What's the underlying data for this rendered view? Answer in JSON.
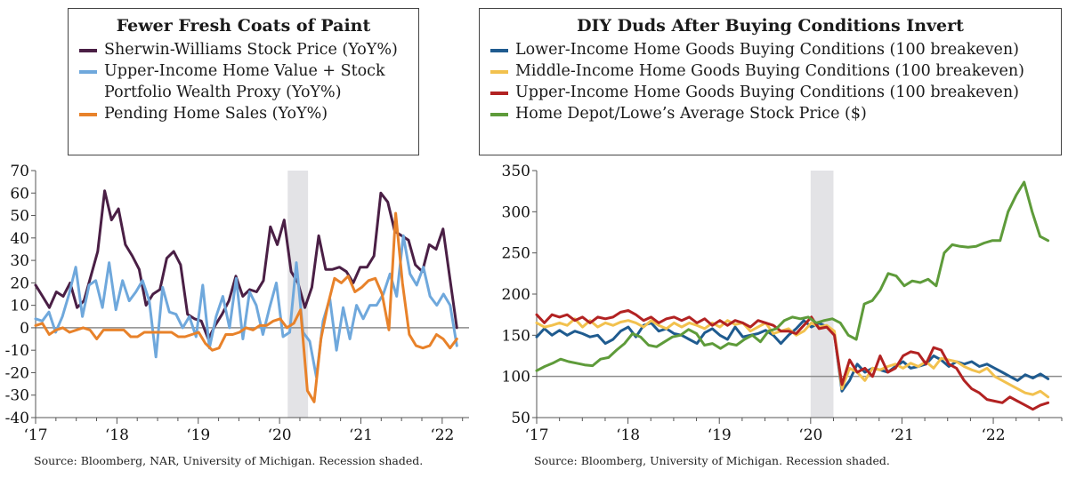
{
  "chart_data": [
    {
      "type": "line",
      "title": "Fewer Fresh Coats of Paint",
      "legend_placement": "top",
      "grid": false,
      "ylim": [
        -40,
        70
      ],
      "y_ticks": [
        "70",
        "60",
        "50",
        "40",
        "30",
        "20",
        "10",
        "0",
        "-10",
        "-20",
        "-30",
        "-40"
      ],
      "x_tick_labels": [
        "‘17",
        "‘18",
        "‘19",
        "‘20",
        "‘21",
        "‘22"
      ],
      "x_range": [
        2017.0,
        2022.33
      ],
      "recession_shade": [
        2020.1,
        2020.35
      ],
      "source": "Source: Bloomberg, NAR, University of Michigan. Recession shaded.",
      "series": [
        {
          "name": "Sherwin-Williams Stock Price (YoY%)",
          "color": "#4a1f45",
          "y": [
            19,
            14,
            9,
            16,
            14,
            20,
            9,
            12,
            23,
            34,
            61,
            48,
            53,
            37,
            32,
            26,
            10,
            15,
            17,
            31,
            34,
            28,
            6,
            4,
            3,
            -5,
            1,
            6,
            12,
            23,
            14,
            17,
            16,
            21,
            45,
            37,
            48,
            25,
            20,
            9,
            18,
            41,
            26,
            26,
            27,
            25,
            20,
            27,
            27,
            32,
            60,
            56,
            43,
            41,
            39,
            28,
            25,
            37,
            35,
            44,
            22,
            0
          ]
        },
        {
          "name": "Upper-Income Home Value + Stock Portfolio Wealth Proxy (YoY%)",
          "color": "#6fa8dc",
          "y": [
            4,
            3,
            7,
            -2,
            5,
            15,
            27,
            5,
            19,
            21,
            9,
            29,
            8,
            21,
            12,
            16,
            21,
            12,
            -13,
            18,
            7,
            6,
            0,
            5,
            -4,
            19,
            -9,
            5,
            14,
            0,
            22,
            -5,
            16,
            10,
            -3,
            9,
            20,
            -4,
            -2,
            29,
            -2,
            -6,
            -22,
            3,
            13,
            -10,
            9,
            -5,
            10,
            4,
            10,
            10,
            15,
            24,
            14,
            41,
            24,
            19,
            27,
            14,
            10,
            15,
            10,
            -8
          ]
        },
        {
          "name": "Pending Home Sales (YoY%)",
          "color": "#e8822a",
          "y": [
            1,
            2,
            -3,
            -1,
            0,
            -2,
            -1,
            0,
            -1,
            -5,
            -1,
            -1,
            -1,
            -1,
            -4,
            -4,
            -2,
            -2,
            -2,
            -2,
            -2,
            -4,
            -4,
            -3,
            -2,
            -7,
            -10,
            -9,
            -3,
            -3,
            -2,
            0,
            -1,
            1,
            1,
            3,
            4,
            0,
            2,
            8,
            -28,
            -33,
            -5,
            10,
            22,
            20,
            23,
            16,
            18,
            21,
            22,
            15,
            -1,
            51,
            20,
            -3,
            -8,
            -9,
            -8,
            -3,
            -5,
            -9,
            -5
          ]
        }
      ]
    },
    {
      "type": "line",
      "title": "DIY Duds After Buying Conditions Invert",
      "legend_placement": "top",
      "grid": false,
      "ylim": [
        50,
        350
      ],
      "reference_line": 100,
      "y_ticks": [
        "350",
        "300",
        "250",
        "200",
        "150",
        "100",
        "50"
      ],
      "x_tick_labels": [
        "‘17",
        "‘18",
        "‘19",
        "‘20",
        "‘21",
        "‘22"
      ],
      "x_range": [
        2017.0,
        2022.75
      ],
      "recession_shade": [
        2020.0,
        2020.25
      ],
      "source": "Source: Bloomberg, University of Michigan. Recession shaded.",
      "series": [
        {
          "name": "Lower-Income Home Goods Buying Conditions (100 breakeven)",
          "color": "#1f5b8f",
          "y": [
            148,
            158,
            150,
            156,
            150,
            155,
            152,
            148,
            150,
            140,
            145,
            155,
            160,
            148,
            162,
            165,
            155,
            158,
            152,
            150,
            145,
            140,
            153,
            158,
            150,
            145,
            160,
            148,
            150,
            152,
            156,
            150,
            140,
            150,
            158,
            168,
            160,
            165,
            160,
            152,
            82,
            95,
            115,
            105,
            110,
            108,
            105,
            112,
            118,
            110,
            112,
            115,
            125,
            120,
            112,
            118,
            115,
            118,
            112,
            115,
            110,
            105,
            100,
            95,
            102,
            98,
            103,
            97
          ]
        },
        {
          "name": "Middle-Income Home Goods Buying Conditions (100 breakeven)",
          "color": "#f2c14e",
          "y": [
            165,
            160,
            162,
            165,
            162,
            170,
            160,
            168,
            160,
            165,
            162,
            166,
            168,
            165,
            160,
            168,
            162,
            158,
            165,
            160,
            165,
            162,
            158,
            165,
            160,
            168,
            163,
            165,
            155,
            160,
            165,
            152,
            155,
            158,
            150,
            155,
            165,
            160,
            162,
            155,
            85,
            110,
            105,
            95,
            110,
            108,
            112,
            115,
            110,
            116,
            112,
            118,
            110,
            122,
            120,
            118,
            112,
            108,
            105,
            110,
            100,
            95,
            90,
            85,
            80,
            78,
            82,
            75
          ]
        },
        {
          "name": "Upper-Income Home Goods Buying Conditions (100 breakeven)",
          "color": "#b22222",
          "y": [
            175,
            165,
            175,
            172,
            175,
            168,
            172,
            165,
            172,
            170,
            172,
            178,
            180,
            175,
            168,
            172,
            165,
            170,
            172,
            168,
            172,
            165,
            170,
            162,
            168,
            162,
            168,
            165,
            160,
            168,
            165,
            162,
            155,
            155,
            152,
            162,
            172,
            158,
            160,
            150,
            90,
            120,
            105,
            110,
            100,
            125,
            105,
            110,
            125,
            130,
            128,
            115,
            135,
            132,
            115,
            110,
            95,
            85,
            80,
            72,
            70,
            68,
            75,
            70,
            65,
            60,
            65,
            68
          ]
        },
        {
          "name": "Home Depot/Lowe’s Average Stock Price ($)",
          "color": "#5e9b3a",
          "y": [
            107,
            112,
            116,
            121,
            118,
            116,
            114,
            113,
            121,
            123,
            132,
            140,
            152,
            148,
            138,
            136,
            142,
            148,
            150,
            157,
            152,
            138,
            140,
            134,
            140,
            138,
            145,
            150,
            142,
            155,
            158,
            168,
            172,
            170,
            172,
            165,
            168,
            170,
            165,
            150,
            145,
            188,
            192,
            205,
            225,
            222,
            210,
            216,
            214,
            218,
            210,
            250,
            260,
            258,
            257,
            258,
            262,
            265,
            265,
            300,
            320,
            336,
            300,
            270,
            265
          ]
        }
      ]
    }
  ]
}
